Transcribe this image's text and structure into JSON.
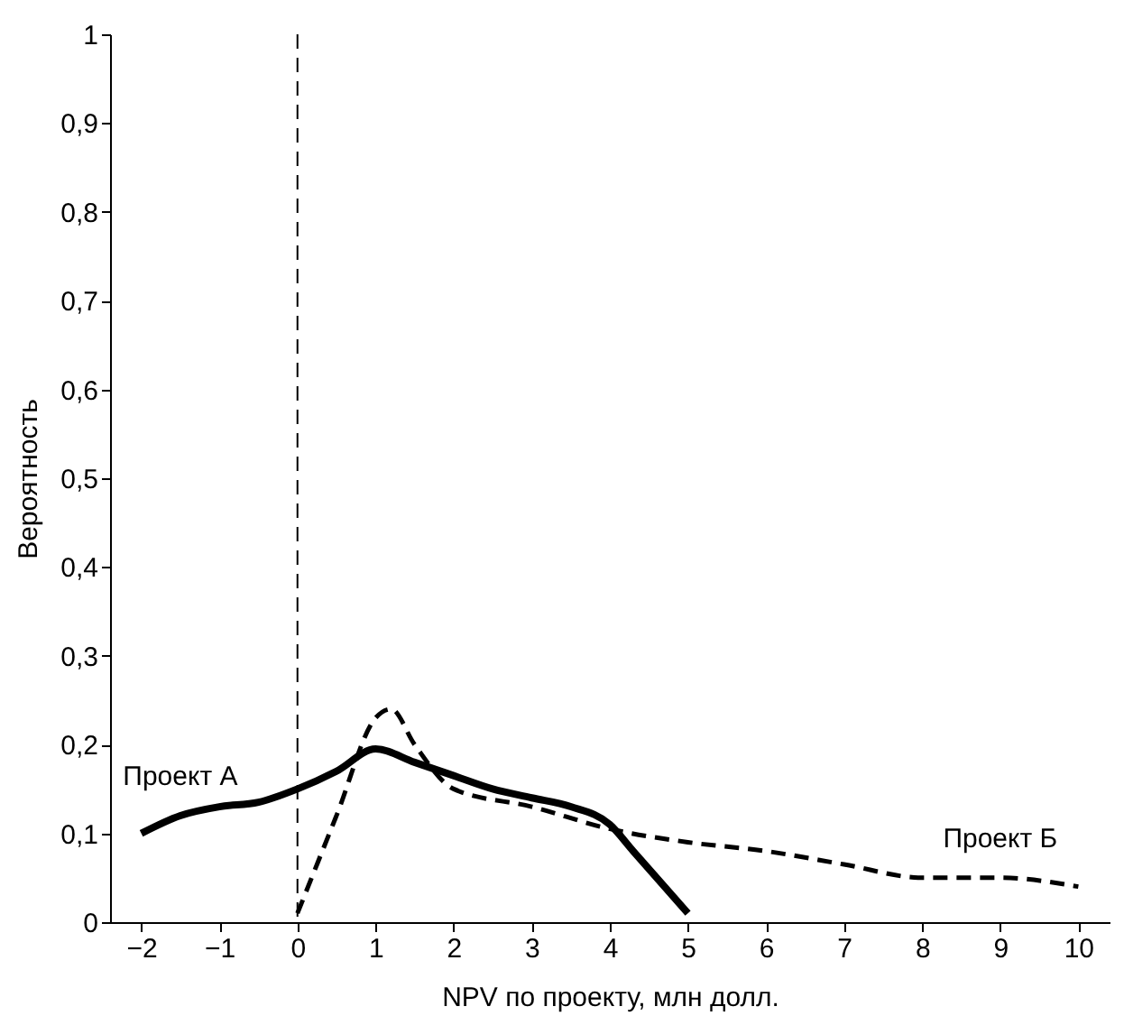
{
  "chart_data": {
    "type": "line",
    "xlabel": "NPV по проекту, млн долл.",
    "ylabel": "Вероятность",
    "xlim": [
      -2.4,
      10.4
    ],
    "ylim": [
      0,
      1
    ],
    "xticks": [
      {
        "value": -2,
        "label": "−2"
      },
      {
        "value": -1,
        "label": "−1"
      },
      0,
      1,
      2,
      3,
      4,
      5,
      6,
      7,
      8,
      9,
      10
    ],
    "yticks": [
      0,
      {
        "value": 0.1,
        "label": "0,1"
      },
      {
        "value": 0.2,
        "label": "0,2"
      },
      {
        "value": 0.3,
        "label": "0,3"
      },
      {
        "value": 0.4,
        "label": "0,4"
      },
      {
        "value": 0.5,
        "label": "0,5"
      },
      {
        "value": 0.6,
        "label": "0,6"
      },
      {
        "value": 0.7,
        "label": "0,7"
      },
      {
        "value": 0.8,
        "label": "0,8"
      },
      {
        "value": 0.9,
        "label": "0,9"
      },
      1
    ],
    "grid": false,
    "marker": "none",
    "ref_lines": [
      {
        "axis": "x",
        "value": 0,
        "label": null,
        "color": "#000000",
        "line_style": "dashed"
      }
    ],
    "series": [
      {
        "name": "Проект А",
        "color": "#000000",
        "line_style": "solid",
        "x": [
          -2,
          -1.5,
          -1,
          -0.5,
          0,
          0.5,
          1,
          1.5,
          2,
          2.5,
          3,
          3.5,
          4,
          4.3,
          4.7,
          5
        ],
        "values": [
          0.1,
          0.12,
          0.13,
          0.135,
          0.15,
          0.17,
          0.195,
          0.18,
          0.165,
          0.15,
          0.14,
          0.13,
          0.11,
          0.08,
          0.04,
          0.01
        ]
      },
      {
        "name": "Проект Б",
        "color": "#000000",
        "line_style": "dashed",
        "x": [
          0,
          0.5,
          1,
          1.2,
          1.5,
          2,
          3,
          4,
          5,
          6,
          7,
          8,
          9,
          10
        ],
        "values": [
          0.01,
          0.12,
          0.23,
          0.24,
          0.2,
          0.15,
          0.13,
          0.105,
          0.09,
          0.08,
          0.065,
          0.05,
          0.05,
          0.04
        ]
      }
    ]
  }
}
